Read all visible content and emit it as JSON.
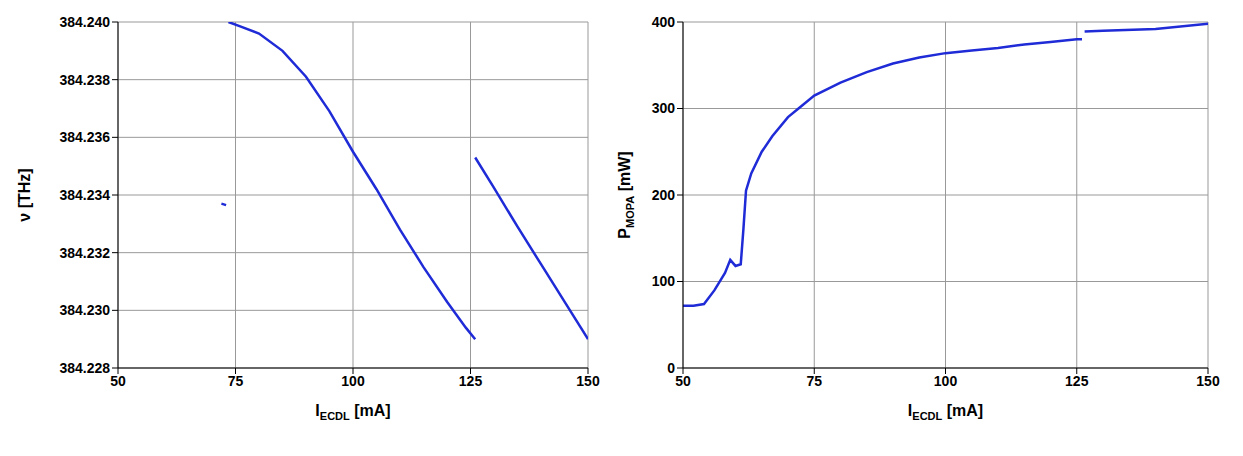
{
  "chart_data": [
    {
      "type": "line",
      "color": "#1f2bd6",
      "grid": true,
      "xlabel": {
        "main": "I",
        "sub": "ECDL",
        "rest": " [mA]"
      },
      "ylabel": {
        "main": "ν",
        "sub": "",
        "rest": " [THz]"
      },
      "xlim": [
        50,
        150
      ],
      "xticks": [
        50,
        75,
        100,
        125,
        150
      ],
      "ylim": [
        384.228,
        384.24
      ],
      "yticks": [
        {
          "value": 384.228,
          "label": "384.228"
        },
        {
          "value": 384.23,
          "label": "384.230"
        },
        {
          "value": 384.232,
          "label": "384.232"
        },
        {
          "value": 384.234,
          "label": "384.234"
        },
        {
          "value": 384.236,
          "label": "384.236"
        },
        {
          "value": 384.238,
          "label": "384.238"
        },
        {
          "value": 384.24,
          "label": "384.240"
        }
      ],
      "x": [
        72,
        73,
        73,
        73.5,
        76,
        80,
        85,
        90,
        95,
        100,
        105,
        110,
        115,
        120,
        124,
        126,
        126,
        126,
        130,
        135,
        140,
        145,
        150
      ],
      "values": [
        384.2337,
        384.23365,
        null,
        384.24,
        384.23985,
        384.2396,
        384.239,
        384.2381,
        384.2369,
        384.2355,
        384.2342,
        384.2328,
        384.2315,
        384.2303,
        384.2294,
        384.229,
        null,
        384.2353,
        384.23425,
        384.2329,
        384.2316,
        384.2303,
        384.229
      ]
    },
    {
      "type": "line",
      "color": "#1f2bd6",
      "grid": true,
      "xlabel": {
        "main": "I",
        "sub": "ECDL",
        "rest": " [mA]"
      },
      "ylabel": {
        "main": "P",
        "sub": "MOPA",
        "rest": " [mW]"
      },
      "xlim": [
        50,
        150
      ],
      "xticks": [
        50,
        75,
        100,
        125,
        150
      ],
      "ylim": [
        0,
        400
      ],
      "yticks": [
        0,
        100,
        200,
        300,
        400
      ],
      "x": [
        50,
        52,
        54,
        56,
        58,
        59,
        60,
        61,
        61.5,
        62,
        63,
        65,
        67,
        70,
        72,
        75,
        80,
        85,
        90,
        95,
        100,
        105,
        110,
        115,
        120,
        125,
        126,
        126,
        126.5,
        130,
        140,
        150
      ],
      "values": [
        72,
        72,
        74,
        90,
        110,
        125,
        118,
        120,
        160,
        205,
        225,
        250,
        268,
        290,
        300,
        315,
        330,
        342,
        352,
        359,
        364,
        367,
        370,
        374,
        377,
        380,
        380,
        null,
        389,
        390,
        392,
        398
      ]
    }
  ]
}
